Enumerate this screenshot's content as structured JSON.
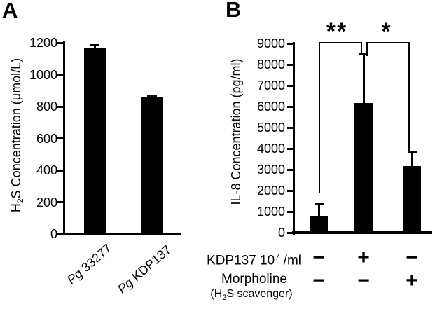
{
  "figure": {
    "background_color": "#ffffff",
    "ink_color": "#000000"
  },
  "chart_data": [
    {
      "type": "bar",
      "panel_label": "A",
      "ylabel": "H2S Concentration (umol/L)",
      "ylabel_parts": {
        "pre": "H",
        "sub": "2",
        "post": "S Concentration (μmol/L)"
      },
      "categories": [
        "Pg 33277",
        "Pg KDP137"
      ],
      "values": [
        1160,
        850
      ],
      "errors": [
        20,
        12
      ],
      "ylim": [
        0,
        1200
      ],
      "yticks": [
        0,
        200,
        400,
        600,
        800,
        1000,
        1200
      ],
      "bar_color": "#000000",
      "grid": "off",
      "legend": "none"
    },
    {
      "type": "bar",
      "panel_label": "B",
      "ylabel": "IL-8 Concentration (pg/ml)",
      "values": [
        750,
        6100,
        3100
      ],
      "errors": [
        550,
        2350,
        700
      ],
      "ylim": [
        0,
        9000
      ],
      "yticks": [
        0,
        1000,
        2000,
        3000,
        4000,
        5000,
        6000,
        7000,
        8000,
        9000
      ],
      "bar_color": "#000000",
      "grid": "off",
      "legend": "none",
      "significance": [
        {
          "label": "**",
          "between_bars": [
            1,
            2
          ]
        },
        {
          "label": "*",
          "between_bars": [
            2,
            3
          ]
        }
      ],
      "condition_rows": [
        {
          "label": "KDP137 10^7 /ml",
          "label_parts": {
            "pre": "KDP137 10",
            "sup": "7",
            "post": " /ml"
          },
          "symbols": [
            "−",
            "+",
            "−"
          ]
        },
        {
          "label": "Morpholine",
          "sublabel": "(H2S scavenger)",
          "sublabel_parts": {
            "pre": "(H",
            "sub": "2",
            "post": "S scavenger)"
          },
          "symbols": [
            "−",
            "−",
            "+"
          ]
        }
      ]
    }
  ]
}
